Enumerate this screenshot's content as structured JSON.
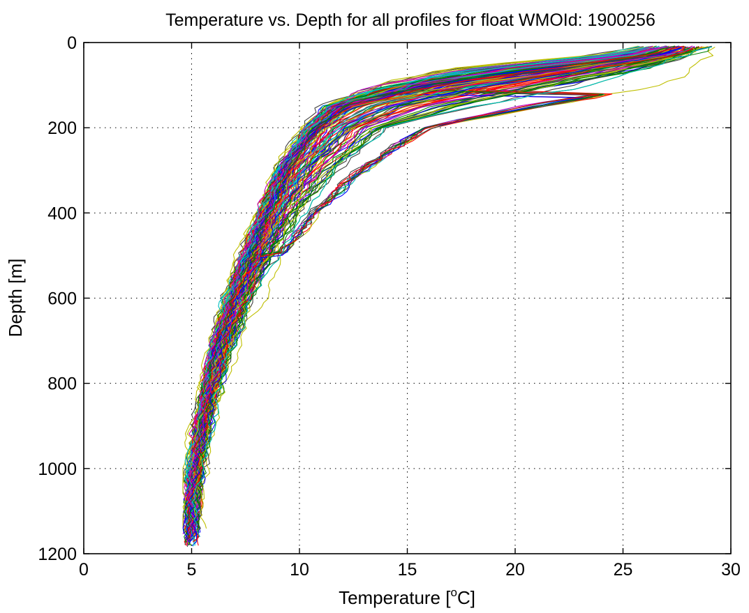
{
  "chart_data": {
    "type": "line",
    "title": "Temperature vs. Depth for all profiles for float WMOId: 1900256",
    "xlabel": "Temperature [",
    "xlabel_sup": "o",
    "xlabel_suffix": "C]",
    "ylabel": "Depth [m]",
    "xlim": [
      0,
      30
    ],
    "ylim": [
      0,
      1200
    ],
    "y_reversed": true,
    "grid": true,
    "xticks": [
      0,
      5,
      10,
      15,
      20,
      25,
      30
    ],
    "yticks": [
      0,
      200,
      400,
      600,
      800,
      1000,
      1200
    ],
    "xtick_labels": [
      "0",
      "5",
      "10",
      "15",
      "20",
      "25",
      "30"
    ],
    "ytick_labels": [
      "0",
      "200",
      "400",
      "600",
      "800",
      "1000",
      "1200"
    ],
    "profile_count": 180,
    "series_colors": [
      "#0000ff",
      "#008000",
      "#ff0000",
      "#00bfbf",
      "#bf00bf",
      "#bfbf00",
      "#404040"
    ],
    "representative_profiles": {
      "depth": [
        10,
        30,
        60,
        100,
        150,
        200,
        300,
        400,
        500,
        600,
        700,
        800,
        900,
        1000,
        1100,
        1180
      ],
      "warm": [
        29.5,
        29.0,
        28.3,
        26.5,
        21.0,
        16.0,
        13.0,
        10.8,
        9.3,
        8.3,
        7.3,
        6.5,
        6.0,
        5.6,
        5.4,
        5.3
      ],
      "median": [
        27.5,
        26.5,
        22.0,
        16.0,
        12.0,
        10.8,
        9.4,
        8.5,
        7.8,
        7.0,
        6.4,
        5.9,
        5.5,
        5.2,
        5.0,
        4.9
      ],
      "cool": [
        25.5,
        23.0,
        16.0,
        13.0,
        11.0,
        10.0,
        8.8,
        8.0,
        7.2,
        6.4,
        5.9,
        5.4,
        5.1,
        4.8,
        4.7,
        4.7
      ]
    }
  }
}
